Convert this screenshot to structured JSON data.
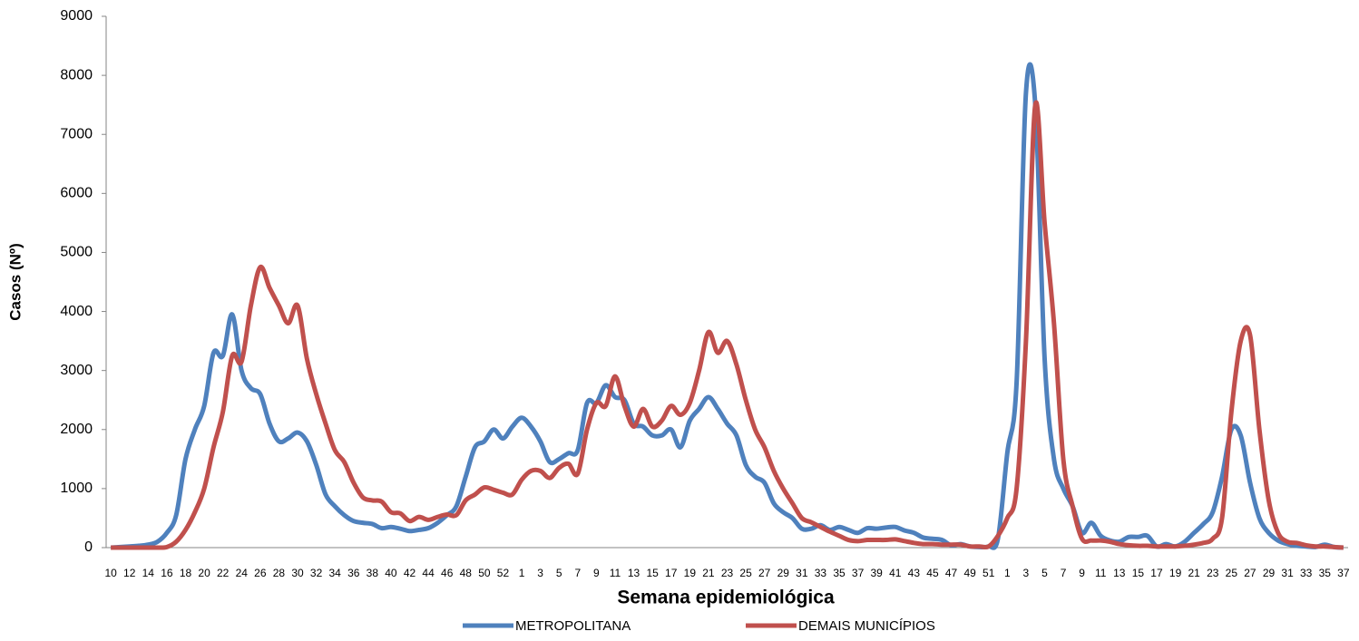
{
  "chart_data": {
    "type": "line",
    "y_label": "Casos (Nº)",
    "x_label": "Semana epidemiológica",
    "categories": [
      "10",
      null,
      "12",
      null,
      "14",
      null,
      "16",
      null,
      "18",
      null,
      "20",
      null,
      "22",
      null,
      "24",
      null,
      "26",
      null,
      "28",
      null,
      "30",
      null,
      "32",
      null,
      "34",
      null,
      "36",
      null,
      "38",
      null,
      "40",
      null,
      "42",
      null,
      "44",
      null,
      "46",
      null,
      "48",
      null,
      "50",
      null,
      "52",
      null,
      "1",
      null,
      "3",
      null,
      "5",
      null,
      "7",
      null,
      "9",
      null,
      "11",
      null,
      "13",
      null,
      "15",
      null,
      "17",
      null,
      "19",
      null,
      "21",
      null,
      "23",
      null,
      "25",
      null,
      "27",
      null,
      "29",
      null,
      "31",
      null,
      "33",
      null,
      "35",
      null,
      "37",
      null,
      "39",
      null,
      "41",
      null,
      "43",
      null,
      "45",
      null,
      "47",
      null,
      "49",
      null,
      "51",
      null,
      "1",
      null,
      "3",
      null,
      "5",
      null,
      "7",
      null,
      "9",
      null,
      "11",
      null,
      "13",
      null,
      "15",
      null,
      "17",
      null,
      "19",
      null,
      "21",
      null,
      "23",
      null,
      "25",
      null,
      "27",
      null,
      "29",
      null,
      "31",
      null,
      "33",
      null,
      "35",
      null,
      "37"
    ],
    "series": [
      {
        "name": "METROPOLITANA",
        "color": "#4f81bd",
        "values": [
          0,
          10,
          20,
          30,
          50,
          100,
          250,
          550,
          1500,
          2000,
          2400,
          3300,
          3250,
          3950,
          3000,
          2700,
          2600,
          2100,
          1800,
          1850,
          1950,
          1800,
          1400,
          900,
          700,
          550,
          450,
          420,
          400,
          330,
          350,
          320,
          280,
          300,
          330,
          420,
          550,
          700,
          1200,
          1700,
          1800,
          2000,
          1850,
          2050,
          2200,
          2050,
          1800,
          1450,
          1500,
          1600,
          1650,
          2450,
          2450,
          2750,
          2550,
          2500,
          2100,
          2050,
          1900,
          1900,
          2000,
          1700,
          2150,
          2350,
          2550,
          2350,
          2100,
          1900,
          1400,
          1200,
          1100,
          750,
          600,
          500,
          320,
          320,
          380,
          300,
          350,
          300,
          250,
          330,
          320,
          340,
          350,
          290,
          250,
          170,
          150,
          130,
          40,
          60,
          20,
          10,
          20,
          150,
          1600,
          2800,
          7700,
          7500,
          3200,
          1500,
          1000,
          700,
          250,
          420,
          200,
          120,
          100,
          180,
          180,
          200,
          20,
          60,
          20,
          100,
          250,
          400,
          600,
          1200,
          2000,
          1900,
          1100,
          500,
          250,
          120,
          60,
          30,
          20,
          10,
          50,
          10,
          0
        ]
      },
      {
        "name": "DEMAIS MUNICÍPIOS",
        "color": "#c0504d",
        "values": [
          0,
          0,
          0,
          0,
          0,
          0,
          10,
          100,
          300,
          600,
          1000,
          1700,
          2300,
          3250,
          3150,
          4100,
          4750,
          4400,
          4100,
          3800,
          4100,
          3200,
          2600,
          2100,
          1650,
          1450,
          1100,
          850,
          800,
          780,
          600,
          580,
          450,
          520,
          470,
          520,
          560,
          550,
          800,
          900,
          1020,
          980,
          930,
          900,
          1150,
          1300,
          1300,
          1180,
          1350,
          1420,
          1250,
          2000,
          2450,
          2400,
          2900,
          2400,
          2050,
          2350,
          2050,
          2150,
          2400,
          2250,
          2450,
          3000,
          3650,
          3300,
          3500,
          3100,
          2500,
          2000,
          1700,
          1300,
          1000,
          750,
          500,
          430,
          350,
          270,
          200,
          130,
          110,
          130,
          130,
          130,
          140,
          110,
          80,
          60,
          60,
          50,
          50,
          50,
          20,
          20,
          20,
          200,
          500,
          1000,
          3500,
          7500,
          5500,
          3800,
          1500,
          700,
          150,
          120,
          120,
          100,
          60,
          40,
          30,
          30,
          20,
          20,
          20,
          30,
          50,
          80,
          150,
          500,
          2300,
          3500,
          3600,
          2000,
          800,
          250,
          100,
          80,
          40,
          20,
          20,
          10,
          0
        ]
      }
    ],
    "ylim": [
      0,
      9000
    ],
    "yticks": [
      0,
      1000,
      2000,
      3000,
      4000,
      5000,
      6000,
      7000,
      8000,
      9000
    ]
  }
}
